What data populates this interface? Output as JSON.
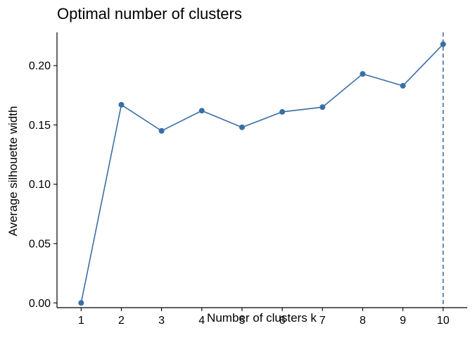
{
  "chart_data": {
    "type": "line",
    "title": "Optimal number of clusters",
    "xlabel": "Number of clusters k",
    "ylabel": "Average silhouette width",
    "x": [
      1,
      2,
      3,
      4,
      5,
      6,
      7,
      8,
      9,
      10
    ],
    "series": [
      {
        "values": [
          0.0,
          0.167,
          0.145,
          0.162,
          0.148,
          0.161,
          0.165,
          0.193,
          0.183,
          0.218
        ]
      }
    ],
    "y_ticks": [
      "0.00",
      "0.05",
      "0.10",
      "0.15",
      "0.20"
    ],
    "ylim": [
      -0.004,
      0.228
    ],
    "xlim": [
      0.4,
      10.6
    ],
    "optimal_k": 10,
    "grid": false,
    "color": "#3a6ea5"
  }
}
